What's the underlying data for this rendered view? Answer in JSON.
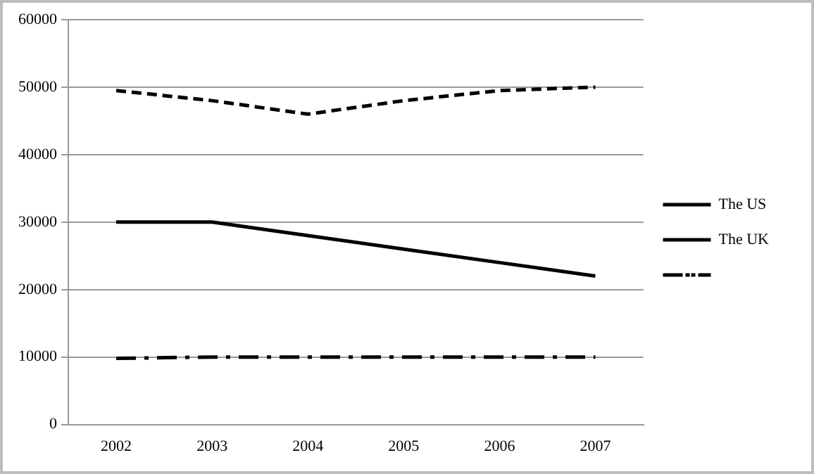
{
  "chart_data": {
    "type": "line",
    "categories": [
      "2002",
      "2003",
      "2004",
      "2005",
      "2006",
      "2007"
    ],
    "series": [
      {
        "name": "The US",
        "color": "#000000",
        "line_style": "dashed",
        "values": [
          49500,
          48000,
          46000,
          48000,
          49500,
          50000
        ]
      },
      {
        "name": "The UK",
        "color": "#000000",
        "line_style": "solid",
        "values": [
          30000,
          30000,
          28000,
          26000,
          24000,
          22000
        ]
      },
      {
        "color": "#000000",
        "line_style": "dashdot",
        "values": [
          9800,
          10000,
          10000,
          10000,
          10000,
          10000
        ]
      }
    ],
    "ylim": [
      0,
      60000
    ],
    "yticks": [
      0,
      10000,
      20000,
      30000,
      40000,
      50000,
      60000
    ],
    "grid": "y",
    "legend": "right",
    "marker": "none"
  }
}
